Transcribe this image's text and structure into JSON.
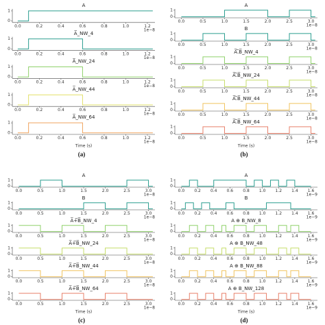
{
  "chart_data": [
    {
      "type": "line",
      "caption": "(a)",
      "xlabel": "Time (s)",
      "x_offset_label": "1e−8",
      "xlim": [
        -0.05,
        1.27
      ],
      "xticks": [
        {
          "value": 0,
          "label": "0.0"
        },
        0.2,
        0.4,
        0.6,
        0.8,
        {
          "value": 1,
          "label": "1.0"
        },
        1.2
      ],
      "ylim": [
        -0.15,
        1.2
      ],
      "yticks": [
        0,
        1
      ],
      "series": [
        {
          "name": "A",
          "color": "#2a9d8f",
          "x": [
            0,
            0.1,
            0.1,
            1.25
          ],
          "values": [
            0,
            0,
            1,
            1
          ]
        },
        {
          "name": "A̅_NW_4",
          "color": "#2a9d8f",
          "x": [
            0,
            0.1,
            0.1,
            0.6,
            0.6,
            1.25
          ],
          "values": [
            0,
            0,
            1,
            1,
            0,
            0
          ]
        },
        {
          "name": "A̅_NW_24",
          "color": "#8fd16a",
          "x": [
            0,
            0.1,
            0.1,
            0.6,
            0.6,
            1.25
          ],
          "values": [
            0,
            0,
            1,
            1,
            0,
            0
          ]
        },
        {
          "name": "A̅_NW_44",
          "color": "#e2e06a",
          "x": [
            0,
            0.1,
            0.1,
            0.6,
            0.6,
            1.25
          ],
          "values": [
            0,
            0,
            1,
            1,
            0,
            0
          ]
        },
        {
          "name": "A̅_NW_64",
          "color": "#f0a35e",
          "x": [
            0,
            0.1,
            0.1,
            0.6,
            0.6,
            1.25
          ],
          "values": [
            0,
            0,
            1,
            1,
            0,
            0
          ]
        }
      ]
    },
    {
      "type": "line",
      "caption": "(b)",
      "xlabel": "Time (s)",
      "x_offset_label": "1e−8",
      "xlim": [
        -0.15,
        3.15
      ],
      "xticks": [
        {
          "value": 0,
          "label": "0.0"
        },
        0.5,
        {
          "value": 1,
          "label": "1.0"
        },
        1.5,
        {
          "value": 2,
          "label": "2.0"
        },
        2.5,
        {
          "value": 3,
          "label": "3.0"
        }
      ],
      "ylim": [
        -0.15,
        1.2
      ],
      "yticks": [
        0,
        1
      ],
      "series": [
        {
          "name": "A",
          "color": "#2a9d8f",
          "x": [
            0,
            1,
            1,
            2,
            2,
            2.5,
            2.5,
            3,
            3,
            3.1
          ],
          "values": [
            0,
            0,
            1,
            1,
            0,
            0,
            1,
            1,
            0,
            0
          ]
        },
        {
          "name": "B",
          "color": "#2a9d8f",
          "x": [
            0,
            0.5,
            0.5,
            1,
            1,
            1.5,
            1.5,
            2,
            2,
            2.5,
            2.5,
            3,
            3,
            3.1
          ],
          "values": [
            0,
            0,
            1,
            1,
            0,
            0,
            1,
            1,
            0,
            0,
            1,
            1,
            0,
            0
          ]
        },
        {
          "name": "A̅.̅B̅_NW_4",
          "color": "#8fd16a",
          "x": [
            0,
            0.5,
            0.5,
            1,
            1,
            1.5,
            1.5,
            2,
            2,
            2.5,
            2.5,
            3,
            3,
            3.1
          ],
          "values": [
            0,
            0,
            1,
            1,
            0,
            0,
            1,
            1,
            0,
            0,
            1,
            1,
            0,
            0
          ]
        },
        {
          "name": "A̅.̅B̅_NW_24",
          "color": "#c6dd6a",
          "x": [
            0,
            0.5,
            0.5,
            1,
            1,
            1.5,
            1.5,
            2,
            2,
            2.5,
            2.5,
            3,
            3,
            3.1
          ],
          "values": [
            0,
            0,
            1,
            1,
            0,
            0,
            1,
            1,
            0,
            0,
            1,
            1,
            0,
            0
          ]
        },
        {
          "name": "A̅.̅B̅_NW_44",
          "color": "#f0c35e",
          "x": [
            0,
            0.5,
            0.5,
            1,
            1,
            1.5,
            1.5,
            2,
            2,
            2.5,
            2.5,
            3,
            3,
            3.1
          ],
          "values": [
            0,
            0,
            1,
            1,
            0,
            0,
            1,
            1,
            0,
            0,
            1,
            1,
            0,
            0
          ]
        },
        {
          "name": "A̅.̅B̅_NW_64",
          "color": "#e8806a",
          "x": [
            0,
            0.5,
            0.5,
            1,
            1,
            1.5,
            1.5,
            2,
            2,
            2.5,
            2.5,
            3,
            3,
            3.1
          ],
          "values": [
            0,
            0,
            1,
            1,
            0,
            0,
            1,
            1,
            0,
            0,
            1,
            1,
            0,
            0
          ]
        }
      ]
    },
    {
      "type": "line",
      "caption": "(c)",
      "xlabel": "Time (s)",
      "x_offset_label": "1e−8",
      "xlim": [
        -0.15,
        3.15
      ],
      "xticks": [
        {
          "value": 0,
          "label": "0.0"
        },
        0.5,
        {
          "value": 1,
          "label": "1.0"
        },
        1.5,
        {
          "value": 2,
          "label": "2.0"
        },
        2.5,
        {
          "value": 3,
          "label": "3.0"
        }
      ],
      "ylim": [
        -0.15,
        1.2
      ],
      "yticks": [
        0,
        1
      ],
      "series": [
        {
          "name": "A",
          "color": "#2a9d8f",
          "x": [
            0,
            0.5,
            0.5,
            1,
            1,
            2.5,
            2.5,
            3,
            3,
            3.1
          ],
          "values": [
            0,
            0,
            1,
            1,
            0,
            0,
            1,
            1,
            0,
            0
          ]
        },
        {
          "name": "B",
          "color": "#2a9d8f",
          "x": [
            0,
            1.5,
            1.5,
            2,
            2,
            2.5,
            2.5,
            3,
            3,
            3.1
          ],
          "values": [
            0,
            0,
            1,
            1,
            0,
            0,
            1,
            1,
            0,
            0
          ]
        },
        {
          "name": "A̅+̅B̅_NW_4",
          "color": "#8fd16a",
          "x": [
            0,
            0.5,
            0.5,
            1,
            1,
            1.5,
            1.5,
            2,
            2,
            2.5,
            2.5,
            3.1
          ],
          "values": [
            1,
            1,
            0,
            0,
            1,
            1,
            0,
            0,
            1,
            1,
            0,
            0
          ]
        },
        {
          "name": "A̅+̅B̅_NW_24",
          "color": "#c6dd6a",
          "x": [
            0,
            0.5,
            0.5,
            1,
            1,
            1.5,
            1.5,
            2,
            2,
            2.5,
            2.5,
            3.1
          ],
          "values": [
            1,
            1,
            0,
            0,
            1,
            1,
            0,
            0,
            1,
            1,
            0,
            0
          ]
        },
        {
          "name": "A̅+̅B̅_NW_44",
          "color": "#f0c35e",
          "x": [
            0,
            0.5,
            0.5,
            1,
            1,
            1.5,
            1.5,
            2,
            2,
            2.5,
            2.5,
            3.1
          ],
          "values": [
            1,
            1,
            0,
            0,
            1,
            1,
            0,
            0,
            1,
            1,
            0,
            0
          ]
        },
        {
          "name": "A̅+̅B̅_NW_64",
          "color": "#e8806a",
          "x": [
            0,
            0.5,
            0.5,
            1,
            1,
            1.5,
            1.5,
            2,
            2,
            2.5,
            2.5,
            3.1
          ],
          "values": [
            1,
            1,
            0,
            0,
            1,
            1,
            0,
            0,
            1,
            1,
            0,
            0
          ]
        }
      ]
    },
    {
      "type": "line",
      "caption": "(d)",
      "xlabel": "Time (s)",
      "x_offset_label": "1e−9",
      "xlim": [
        -0.08,
        1.68
      ],
      "xticks": [
        {
          "value": 0,
          "label": "0.0"
        },
        0.2,
        0.4,
        0.6,
        0.8,
        {
          "value": 1,
          "label": "1.0"
        },
        1.2,
        1.4,
        1.6
      ],
      "ylim": [
        -0.15,
        1.2
      ],
      "yticks": [
        0,
        1
      ],
      "series": [
        {
          "name": "A",
          "color": "#2a9d8f",
          "x": [
            0,
            0.1,
            0.1,
            0.2,
            0.2,
            0.4,
            0.4,
            0.8,
            0.8,
            0.9,
            0.9,
            1,
            1,
            1.1,
            1.1,
            1.2,
            1.2,
            1.3,
            1.3,
            1.4,
            1.4,
            1.6
          ],
          "values": [
            0,
            0,
            1,
            1,
            0,
            0,
            1,
            1,
            0,
            0,
            1,
            1,
            0,
            0,
            1,
            1,
            0,
            0,
            1,
            1,
            0,
            0
          ]
        },
        {
          "name": "B",
          "color": "#2a9d8f",
          "x": [
            0,
            0.05,
            0.05,
            0.15,
            0.15,
            0.25,
            0.25,
            0.35,
            0.35,
            0.55,
            0.55,
            0.65,
            0.65,
            1.05,
            1.05,
            1.35,
            1.35,
            1.6
          ],
          "values": [
            0,
            0,
            1,
            1,
            0,
            0,
            1,
            1,
            0,
            0,
            1,
            1,
            0,
            0,
            1,
            1,
            0,
            0
          ]
        },
        {
          "name": "A ⊕ B_NW_8",
          "color": "#8fd16a",
          "x": [
            0,
            0.1,
            0.1,
            0.2,
            0.2,
            0.3,
            0.3,
            0.4,
            0.4,
            0.5,
            0.5,
            0.55,
            0.55,
            0.65,
            0.65,
            0.8,
            0.8,
            0.9,
            0.9,
            1.05,
            1.05,
            1.2,
            1.2,
            1.3,
            1.3,
            1.35,
            1.35,
            1.45,
            1.45,
            1.6
          ],
          "values": [
            0,
            0,
            1,
            1,
            0,
            0,
            1,
            1,
            0,
            0,
            1,
            1,
            0,
            0,
            1,
            1,
            0,
            0,
            1,
            1,
            0,
            0,
            1,
            1,
            0,
            0,
            1,
            1,
            0,
            0
          ]
        },
        {
          "name": "A ⊕ B_NW_48",
          "color": "#c6dd6a",
          "x": [
            0,
            0.1,
            0.1,
            0.2,
            0.2,
            0.3,
            0.3,
            0.4,
            0.4,
            0.5,
            0.5,
            0.55,
            0.55,
            0.65,
            0.65,
            0.8,
            0.8,
            0.9,
            0.9,
            1.05,
            1.05,
            1.2,
            1.2,
            1.3,
            1.3,
            1.35,
            1.35,
            1.45,
            1.45,
            1.6
          ],
          "values": [
            0,
            0,
            1,
            1,
            0,
            0,
            1,
            1,
            0,
            0,
            1,
            1,
            0,
            0,
            1,
            1,
            0,
            0,
            1,
            1,
            0,
            0,
            1,
            1,
            0,
            0,
            1,
            1,
            0,
            0
          ]
        },
        {
          "name": "A ⊕ B_NW_88",
          "color": "#f0c35e",
          "x": [
            0,
            0.1,
            0.1,
            0.2,
            0.2,
            0.3,
            0.3,
            0.4,
            0.4,
            0.5,
            0.5,
            0.55,
            0.55,
            0.65,
            0.65,
            0.8,
            0.8,
            0.9,
            0.9,
            1.05,
            1.05,
            1.2,
            1.2,
            1.3,
            1.3,
            1.35,
            1.35,
            1.45,
            1.45,
            1.6
          ],
          "values": [
            0,
            0,
            1,
            1,
            0,
            0,
            1,
            1,
            0,
            0,
            1,
            1,
            0,
            0,
            1,
            1,
            0,
            0,
            1,
            1,
            0,
            0,
            1,
            1,
            0,
            0,
            1,
            1,
            0,
            0
          ]
        },
        {
          "name": "A ⊕ B_NW_128",
          "color": "#e8806a",
          "x": [
            0,
            0.1,
            0.1,
            0.2,
            0.2,
            0.3,
            0.3,
            0.4,
            0.4,
            0.5,
            0.5,
            0.55,
            0.55,
            0.65,
            0.65,
            0.8,
            0.8,
            0.9,
            0.9,
            1.05,
            1.05,
            1.2,
            1.2,
            1.3,
            1.3,
            1.35,
            1.35,
            1.45,
            1.45,
            1.6
          ],
          "values": [
            0,
            0,
            1,
            1,
            0,
            0,
            1,
            1,
            0,
            0,
            1,
            1,
            0,
            0,
            1,
            1,
            0,
            0,
            1,
            1,
            0,
            0,
            1,
            1,
            0,
            0,
            1,
            1,
            0,
            0
          ]
        }
      ]
    }
  ]
}
